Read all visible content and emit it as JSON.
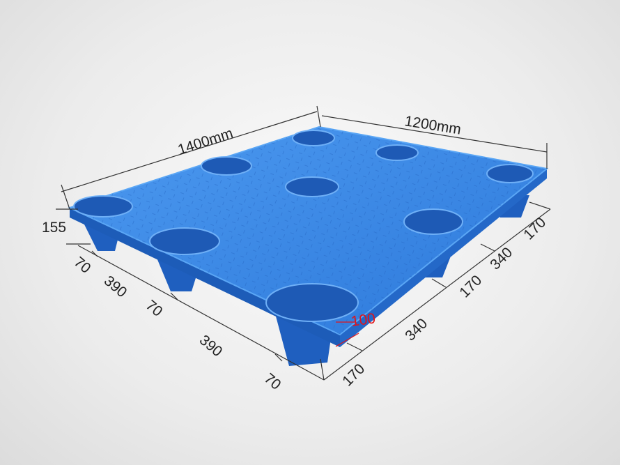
{
  "dimensions": {
    "length": "1400mm",
    "width": "1200mm",
    "height": "155",
    "leg_height": "100",
    "left_segments": [
      "70",
      "390",
      "70",
      "390",
      "70"
    ],
    "right_segments": [
      "170",
      "340",
      "170",
      "340",
      "170"
    ]
  },
  "colors": {
    "pallet": "#2f7fe0",
    "highlight_dimension": "#e0141a"
  }
}
